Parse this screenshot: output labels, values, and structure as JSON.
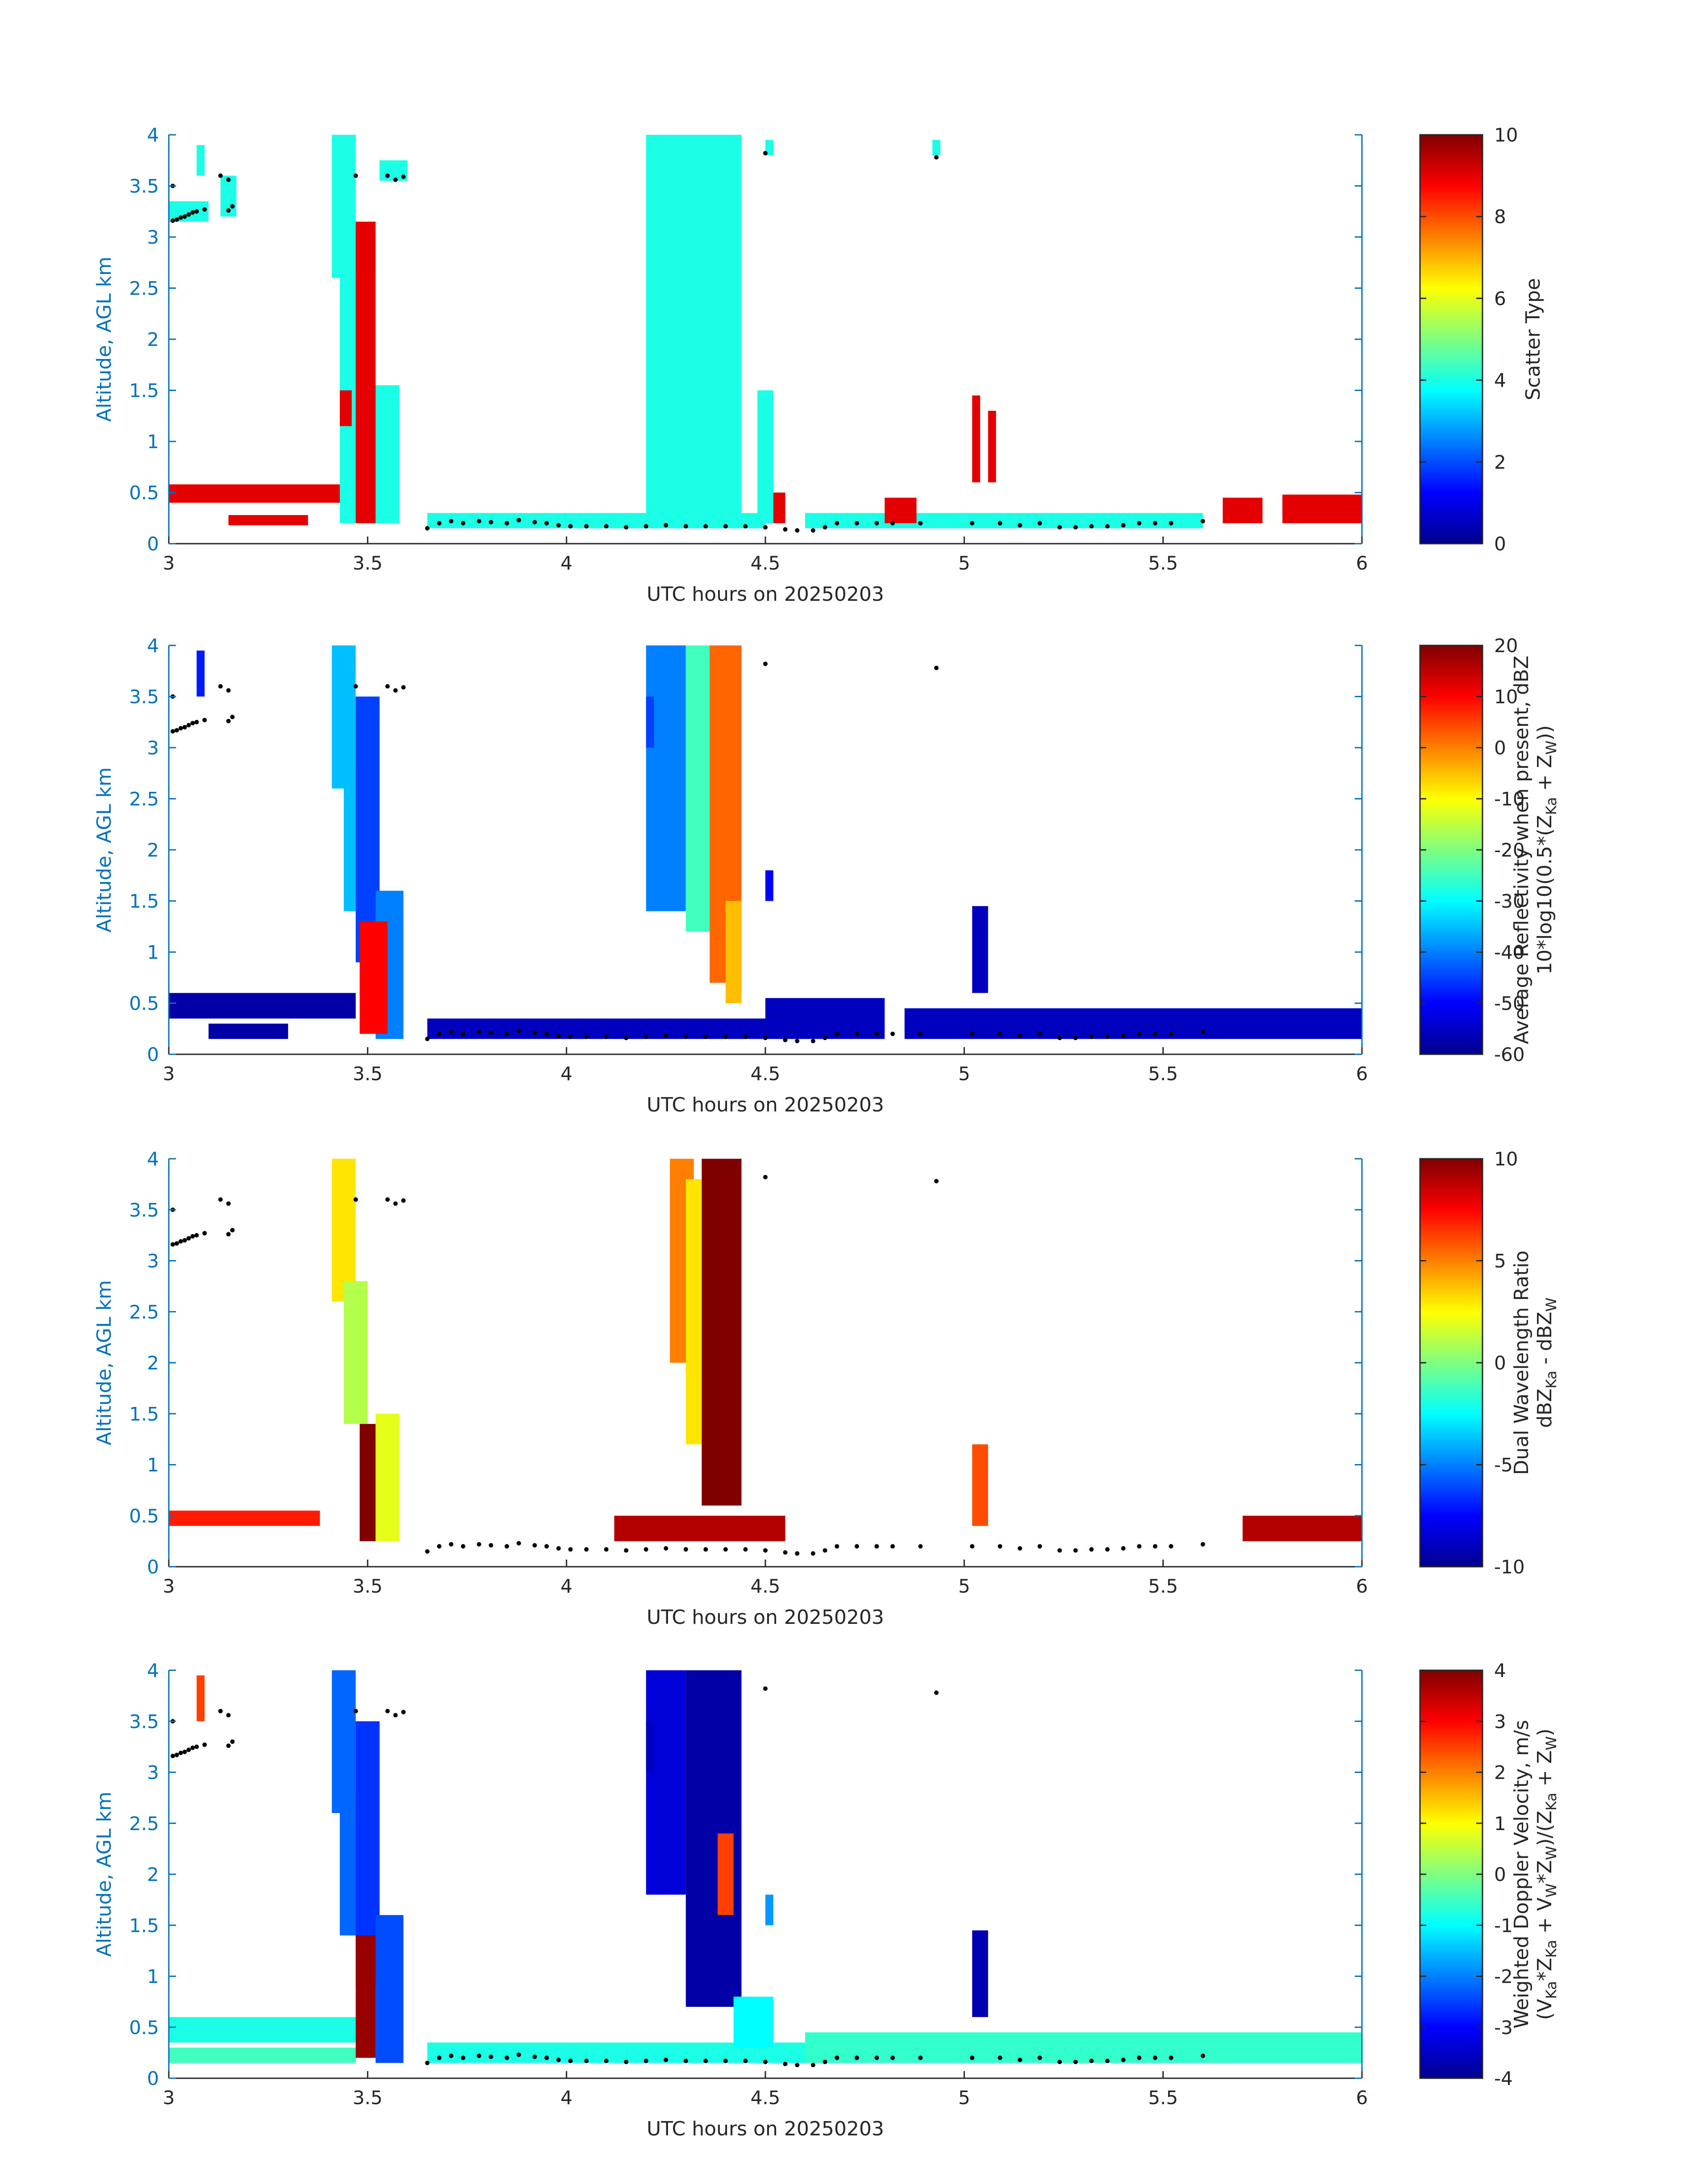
{
  "chart_data": [
    {
      "type": "heatmap",
      "xlabel": "UTC hours on 20250203",
      "ylabel": "Altitude, AGL km",
      "xlim": [
        3,
        6
      ],
      "ylim": [
        0,
        4
      ],
      "xticks": [
        "3",
        "3.5",
        "4",
        "4.5",
        "5",
        "5.5",
        "6"
      ],
      "yticks": [
        "0",
        "0.5",
        "1",
        "1.5",
        "2",
        "2.5",
        "3",
        "3.5",
        "4"
      ],
      "colorbar": {
        "label": [
          "Scatter Type"
        ],
        "clim": [
          0,
          10
        ],
        "ticks": [
          "0",
          "2",
          "4",
          "6",
          "8",
          "10"
        ],
        "colormap": "jet"
      },
      "regions": [
        {
          "x": [
            3.0,
            3.1
          ],
          "y": [
            3.15,
            3.35
          ],
          "value": 4
        },
        {
          "x": [
            3.07,
            3.09
          ],
          "y": [
            3.6,
            3.9
          ],
          "value": 4
        },
        {
          "x": [
            3.13,
            3.17
          ],
          "y": [
            3.2,
            3.6
          ],
          "value": 4
        },
        {
          "x": [
            3.41,
            3.47
          ],
          "y": [
            2.6,
            4.0
          ],
          "value": 4
        },
        {
          "x": [
            3.43,
            3.5
          ],
          "y": [
            0.2,
            2.6
          ],
          "value": 4
        },
        {
          "x": [
            3.51,
            3.58
          ],
          "y": [
            0.2,
            1.55
          ],
          "value": 4
        },
        {
          "x": [
            3.53,
            3.6
          ],
          "y": [
            3.55,
            3.75
          ],
          "value": 4
        },
        {
          "x": [
            4.2,
            4.44
          ],
          "y": [
            0.2,
            4.0
          ],
          "value": 4
        },
        {
          "x": [
            4.48,
            4.52
          ],
          "y": [
            0.2,
            1.5
          ],
          "value": 4
        },
        {
          "x": [
            4.5,
            4.52
          ],
          "y": [
            3.8,
            3.95
          ],
          "value": 4
        },
        {
          "x": [
            4.92,
            4.94
          ],
          "y": [
            3.8,
            3.95
          ],
          "value": 4
        },
        {
          "x": [
            3.65,
            4.5
          ],
          "y": [
            0.15,
            0.3
          ],
          "value": 4
        },
        {
          "x": [
            4.6,
            5.6
          ],
          "y": [
            0.15,
            0.3
          ],
          "value": 4
        },
        {
          "x": [
            3.0,
            3.43
          ],
          "y": [
            0.4,
            0.58
          ],
          "value": 9
        },
        {
          "x": [
            3.15,
            3.35
          ],
          "y": [
            0.18,
            0.28
          ],
          "value": 9
        },
        {
          "x": [
            3.47,
            3.52
          ],
          "y": [
            0.2,
            3.15
          ],
          "value": 9
        },
        {
          "x": [
            3.43,
            3.46
          ],
          "y": [
            1.15,
            1.5
          ],
          "value": 9
        },
        {
          "x": [
            4.52,
            4.55
          ],
          "y": [
            0.2,
            0.5
          ],
          "value": 9
        },
        {
          "x": [
            4.8,
            4.88
          ],
          "y": [
            0.2,
            0.45
          ],
          "value": 9
        },
        {
          "x": [
            5.02,
            5.04
          ],
          "y": [
            0.6,
            1.45
          ],
          "value": 9
        },
        {
          "x": [
            5.06,
            5.08
          ],
          "y": [
            0.6,
            1.3
          ],
          "value": 9
        },
        {
          "x": [
            5.65,
            5.75
          ],
          "y": [
            0.2,
            0.45
          ],
          "value": 9
        },
        {
          "x": [
            5.8,
            6.0
          ],
          "y": [
            0.2,
            0.48
          ],
          "value": 9
        }
      ]
    },
    {
      "type": "heatmap",
      "xlabel": "UTC hours on 20250203",
      "ylabel": "Altitude, AGL km",
      "xlim": [
        3,
        6
      ],
      "ylim": [
        0,
        4
      ],
      "xticks": [
        "3",
        "3.5",
        "4",
        "4.5",
        "5",
        "5.5",
        "6"
      ],
      "yticks": [
        "0",
        "0.5",
        "1",
        "1.5",
        "2",
        "2.5",
        "3",
        "3.5",
        "4"
      ],
      "colorbar": {
        "label": [
          "Average Reflectivity when present, dBZ",
          "10*log10(0.5*(Z_Ka + Z_W))"
        ],
        "clim": [
          -60,
          20
        ],
        "ticks": [
          "-60",
          "-50",
          "-40",
          "-30",
          "-20",
          "-10",
          "0",
          "10",
          "20"
        ],
        "colormap": "jet"
      },
      "regions": [
        {
          "x": [
            3.07,
            3.09
          ],
          "y": [
            3.5,
            3.95
          ],
          "value": -48
        },
        {
          "x": [
            3.0,
            3.47
          ],
          "y": [
            0.35,
            0.6
          ],
          "value": -57
        },
        {
          "x": [
            3.1,
            3.3
          ],
          "y": [
            0.15,
            0.3
          ],
          "value": -57
        },
        {
          "x": [
            3.41,
            3.47
          ],
          "y": [
            2.6,
            4.0
          ],
          "value": -35
        },
        {
          "x": [
            3.44,
            3.5
          ],
          "y": [
            1.4,
            2.8
          ],
          "value": -35
        },
        {
          "x": [
            3.47,
            3.53
          ],
          "y": [
            0.9,
            3.5
          ],
          "value": -45
        },
        {
          "x": [
            3.52,
            3.59
          ],
          "y": [
            0.15,
            1.6
          ],
          "value": -40
        },
        {
          "x": [
            3.48,
            3.55
          ],
          "y": [
            0.2,
            1.3
          ],
          "value": 10
        },
        {
          "x": [
            3.65,
            4.5
          ],
          "y": [
            0.15,
            0.35
          ],
          "value": -55
        },
        {
          "x": [
            4.5,
            4.8
          ],
          "y": [
            0.15,
            0.55
          ],
          "value": -55
        },
        {
          "x": [
            4.85,
            6.0
          ],
          "y": [
            0.15,
            0.45
          ],
          "value": -55
        },
        {
          "x": [
            4.2,
            4.3
          ],
          "y": [
            1.4,
            4.0
          ],
          "value": -40
        },
        {
          "x": [
            4.3,
            4.38
          ],
          "y": [
            1.2,
            4.0
          ],
          "value": -25
        },
        {
          "x": [
            4.36,
            4.44
          ],
          "y": [
            0.7,
            4.0
          ],
          "value": 2
        },
        {
          "x": [
            4.4,
            4.44
          ],
          "y": [
            0.5,
            1.5
          ],
          "value": -5
        },
        {
          "x": [
            4.2,
            4.22
          ],
          "y": [
            3.0,
            3.5
          ],
          "value": -45
        },
        {
          "x": [
            4.5,
            4.52
          ],
          "y": [
            1.5,
            1.8
          ],
          "value": -50
        },
        {
          "x": [
            5.02,
            5.06
          ],
          "y": [
            0.6,
            1.45
          ],
          "value": -55
        }
      ]
    },
    {
      "type": "heatmap",
      "xlabel": "UTC hours on 20250203",
      "ylabel": "Altitude, AGL km",
      "xlim": [
        3,
        6
      ],
      "ylim": [
        0,
        4
      ],
      "xticks": [
        "3",
        "3.5",
        "4",
        "4.5",
        "5",
        "5.5",
        "6"
      ],
      "yticks": [
        "0",
        "0.5",
        "1",
        "1.5",
        "2",
        "2.5",
        "3",
        "3.5",
        "4"
      ],
      "colorbar": {
        "label": [
          "Dual Wavelength Ratio",
          "dBZ_Ka - dBZ_W"
        ],
        "clim": [
          -10,
          10
        ],
        "ticks": [
          "-10",
          "-5",
          "0",
          "5",
          "10"
        ],
        "colormap": "jet"
      },
      "regions": [
        {
          "x": [
            3.41,
            3.47
          ],
          "y": [
            2.6,
            4.0
          ],
          "value": 3
        },
        {
          "x": [
            3.44,
            3.5
          ],
          "y": [
            1.4,
            2.8
          ],
          "value": 1
        },
        {
          "x": [
            3.48,
            3.52
          ],
          "y": [
            0.25,
            1.4
          ],
          "value": 10
        },
        {
          "x": [
            3.52,
            3.58
          ],
          "y": [
            0.25,
            1.5
          ],
          "value": 2
        },
        {
          "x": [
            3.0,
            3.38
          ],
          "y": [
            0.4,
            0.55
          ],
          "value": 7
        },
        {
          "x": [
            4.26,
            4.32
          ],
          "y": [
            2.0,
            4.0
          ],
          "value": 5
        },
        {
          "x": [
            4.3,
            4.36
          ],
          "y": [
            1.2,
            3.8
          ],
          "value": 3
        },
        {
          "x": [
            4.34,
            4.44
          ],
          "y": [
            0.6,
            4.0
          ],
          "value": 10
        },
        {
          "x": [
            4.12,
            4.55
          ],
          "y": [
            0.25,
            0.5
          ],
          "value": 9
        },
        {
          "x": [
            5.02,
            5.06
          ],
          "y": [
            0.4,
            1.2
          ],
          "value": 6
        },
        {
          "x": [
            5.7,
            6.0
          ],
          "y": [
            0.25,
            0.5
          ],
          "value": 9
        }
      ]
    },
    {
      "type": "heatmap",
      "xlabel": "UTC hours on 20250203",
      "ylabel": "Altitude, AGL km",
      "xlim": [
        3,
        6
      ],
      "ylim": [
        0,
        4
      ],
      "xticks": [
        "3",
        "3.5",
        "4",
        "4.5",
        "5",
        "5.5",
        "6"
      ],
      "yticks": [
        "0",
        "0.5",
        "1",
        "1.5",
        "2",
        "2.5",
        "3",
        "3.5",
        "4"
      ],
      "colorbar": {
        "label": [
          "Weighted Doppler Velocity, m/s",
          "(V_Ka*Z_Ka + V_W*Z_W)/(Z_Ka + Z_W)"
        ],
        "clim": [
          -4,
          4
        ],
        "ticks": [
          "-4",
          "-3",
          "-2",
          "-1",
          "0",
          "1",
          "2",
          "3",
          "4"
        ],
        "colormap": "jet"
      },
      "regions": [
        {
          "x": [
            3.07,
            3.09
          ],
          "y": [
            3.5,
            3.95
          ],
          "value": 2.5
        },
        {
          "x": [
            3.0,
            3.47
          ],
          "y": [
            0.35,
            0.6
          ],
          "value": -0.8
        },
        {
          "x": [
            3.0,
            3.47
          ],
          "y": [
            0.15,
            0.3
          ],
          "value": -0.5
        },
        {
          "x": [
            3.41,
            3.47
          ],
          "y": [
            2.6,
            4.0
          ],
          "value": -2.2
        },
        {
          "x": [
            3.43,
            3.5
          ],
          "y": [
            1.4,
            2.8
          ],
          "value": -2.2
        },
        {
          "x": [
            3.47,
            3.53
          ],
          "y": [
            0.9,
            3.5
          ],
          "value": -2.6
        },
        {
          "x": [
            3.52,
            3.59
          ],
          "y": [
            0.15,
            1.6
          ],
          "value": -2.4
        },
        {
          "x": [
            3.47,
            3.52
          ],
          "y": [
            0.2,
            1.4
          ],
          "value": 3.8
        },
        {
          "x": [
            3.65,
            4.6
          ],
          "y": [
            0.15,
            0.35
          ],
          "value": -0.8
        },
        {
          "x": [
            4.6,
            6.0
          ],
          "y": [
            0.15,
            0.45
          ],
          "value": -0.6
        },
        {
          "x": [
            4.2,
            4.3
          ],
          "y": [
            1.8,
            4.0
          ],
          "value": -3.3
        },
        {
          "x": [
            4.3,
            4.44
          ],
          "y": [
            0.7,
            4.0
          ],
          "value": -3.7
        },
        {
          "x": [
            4.38,
            4.42
          ],
          "y": [
            1.6,
            2.4
          ],
          "value": 2.5
        },
        {
          "x": [
            4.42,
            4.52
          ],
          "y": [
            0.3,
            0.8
          ],
          "value": -1.0
        },
        {
          "x": [
            4.2,
            4.22
          ],
          "y": [
            3.0,
            3.5
          ],
          "value": -3.5
        },
        {
          "x": [
            4.5,
            4.52
          ],
          "y": [
            1.5,
            1.8
          ],
          "value": -1.8
        },
        {
          "x": [
            5.02,
            5.06
          ],
          "y": [
            0.6,
            1.45
          ],
          "value": -3.6
        }
      ]
    }
  ],
  "ground_points": [
    [
      3.01,
      3.16
    ],
    [
      3.02,
      3.17
    ],
    [
      3.03,
      3.19
    ],
    [
      3.04,
      3.2
    ],
    [
      3.05,
      3.22
    ],
    [
      3.06,
      3.24
    ],
    [
      3.07,
      3.25
    ],
    [
      3.09,
      3.27
    ],
    [
      3.01,
      3.5
    ],
    [
      3.13,
      3.6
    ],
    [
      3.15,
      3.56
    ],
    [
      3.15,
      3.26
    ],
    [
      3.16,
      3.3
    ],
    [
      3.47,
      3.6
    ],
    [
      3.55,
      3.6
    ],
    [
      3.57,
      3.56
    ],
    [
      3.59,
      3.59
    ],
    [
      3.65,
      0.15
    ],
    [
      3.68,
      0.2
    ],
    [
      3.71,
      0.22
    ],
    [
      3.74,
      0.2
    ],
    [
      3.78,
      0.22
    ],
    [
      3.81,
      0.21
    ],
    [
      3.85,
      0.2
    ],
    [
      3.88,
      0.23
    ],
    [
      3.92,
      0.21
    ],
    [
      3.95,
      0.2
    ],
    [
      3.98,
      0.18
    ],
    [
      4.01,
      0.17
    ],
    [
      4.05,
      0.17
    ],
    [
      4.1,
      0.17
    ],
    [
      4.15,
      0.16
    ],
    [
      4.2,
      0.17
    ],
    [
      4.25,
      0.18
    ],
    [
      4.3,
      0.17
    ],
    [
      4.35,
      0.17
    ],
    [
      4.4,
      0.17
    ],
    [
      4.45,
      0.17
    ],
    [
      4.5,
      0.16
    ],
    [
      4.55,
      0.14
    ],
    [
      4.58,
      0.13
    ],
    [
      4.62,
      0.13
    ],
    [
      4.65,
      0.16
    ],
    [
      4.68,
      0.2
    ],
    [
      4.73,
      0.2
    ],
    [
      4.78,
      0.2
    ],
    [
      4.82,
      0.2
    ],
    [
      4.89,
      0.2
    ],
    [
      5.02,
      0.2
    ],
    [
      5.09,
      0.2
    ],
    [
      5.14,
      0.18
    ],
    [
      5.19,
      0.2
    ],
    [
      5.24,
      0.16
    ],
    [
      5.28,
      0.16
    ],
    [
      5.32,
      0.17
    ],
    [
      5.36,
      0.17
    ],
    [
      5.4,
      0.18
    ],
    [
      5.44,
      0.2
    ],
    [
      5.48,
      0.2
    ],
    [
      5.52,
      0.2
    ],
    [
      5.6,
      0.22
    ],
    [
      4.5,
      3.82
    ],
    [
      4.93,
      3.78
    ]
  ]
}
